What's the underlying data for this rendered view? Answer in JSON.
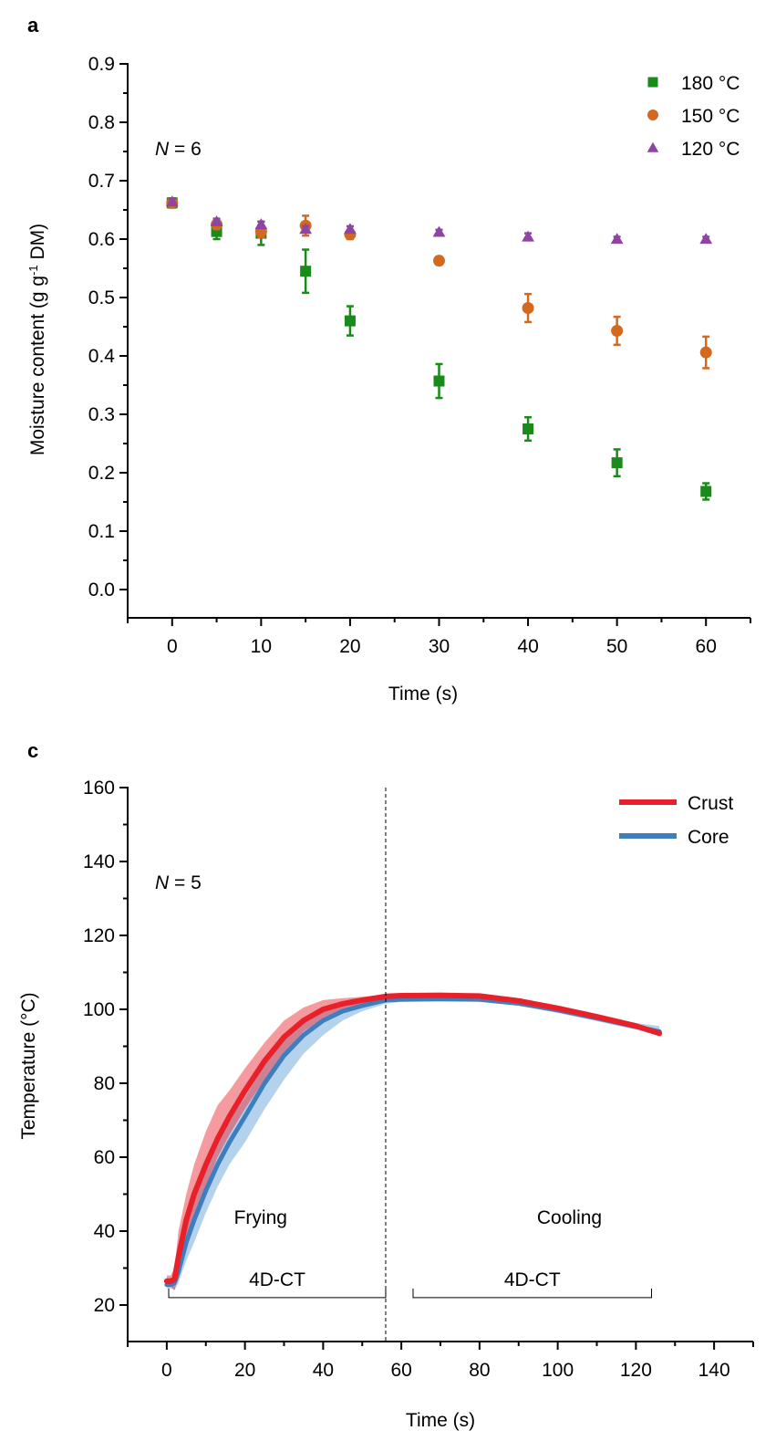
{
  "chart_data": [
    {
      "panel": "a",
      "type": "scatter",
      "title": "",
      "xlabel": "Time (s)",
      "ylabel": "Moisture content (g g⁻¹ DM)",
      "ylabel_parts": {
        "pre": "Moisture content (g g",
        "sup": "-1",
        "post": " DM)"
      },
      "xlim": [
        -5,
        65
      ],
      "ylim": [
        -0.05,
        0.9
      ],
      "xticks": [
        0,
        10,
        20,
        30,
        40,
        50,
        60
      ],
      "xtick_labels": [
        "0",
        "10",
        "20",
        "30",
        "40",
        "50",
        "60"
      ],
      "yticks": [
        0.0,
        0.1,
        0.2,
        0.3,
        0.4,
        0.5,
        0.6,
        0.7,
        0.8,
        0.9
      ],
      "ytick_labels": [
        "0.0",
        "0.1",
        "0.2",
        "0.3",
        "0.4",
        "0.5",
        "0.6",
        "0.7",
        "0.8",
        "0.9"
      ],
      "grid": false,
      "legend_position": "top-right",
      "annotation": {
        "italic": "N",
        "rest": " = 6"
      },
      "x": [
        0,
        5,
        10,
        15,
        20,
        30,
        40,
        50,
        60
      ],
      "series": [
        {
          "name": "180 °C",
          "marker": "square",
          "color": "#1a8a1a",
          "values": [
            0.662,
            0.613,
            0.61,
            0.545,
            0.46,
            0.357,
            0.275,
            0.217,
            0.168
          ],
          "errors": [
            0.008,
            0.013,
            0.02,
            0.037,
            0.025,
            0.029,
            0.02,
            0.023,
            0.014
          ]
        },
        {
          "name": "150 °C",
          "marker": "circle",
          "color": "#d2691e",
          "values": [
            0.662,
            0.625,
            0.613,
            0.623,
            0.608,
            0.563,
            0.482,
            0.443,
            0.406
          ],
          "errors": [
            0.006,
            0.008,
            0.01,
            0.017,
            0.008,
            0.007,
            0.024,
            0.024,
            0.027
          ]
        },
        {
          "name": "120 °C",
          "marker": "triangle",
          "color": "#8e44a0",
          "values": [
            0.664,
            0.63,
            0.625,
            0.617,
            0.617,
            0.612,
            0.604,
            0.6,
            0.6
          ],
          "errors": [
            0.005,
            0.005,
            0.005,
            0.005,
            0.005,
            0.004,
            0.006,
            0.004,
            0.004
          ]
        }
      ]
    },
    {
      "panel": "c",
      "type": "line",
      "title": "",
      "xlabel": "Time (s)",
      "ylabel": "Temperature (°C)",
      "xlim": [
        -10,
        150
      ],
      "ylim": [
        10,
        160
      ],
      "xticks": [
        0,
        20,
        40,
        60,
        80,
        100,
        120,
        140
      ],
      "xtick_labels": [
        "0",
        "20",
        "40",
        "60",
        "80",
        "100",
        "120",
        "140"
      ],
      "yticks": [
        20,
        40,
        60,
        80,
        100,
        120,
        140,
        160
      ],
      "ytick_labels": [
        "20",
        "40",
        "60",
        "80",
        "100",
        "120",
        "140",
        "160"
      ],
      "grid": false,
      "legend_position": "top-right",
      "annotation": {
        "italic": "N",
        "rest": " = 5"
      },
      "divider_x": 56,
      "phases": [
        {
          "label": "Frying",
          "x": 24,
          "y": 42
        },
        {
          "label": "Cooling",
          "x": 103,
          "y": 42
        }
      ],
      "brackets": [
        {
          "label": "4D-CT",
          "x0": 0.5,
          "x1": 56,
          "y": 22
        },
        {
          "label": "4D-CT",
          "x0": 63,
          "x1": 124,
          "y": 22
        }
      ],
      "x": [
        0,
        1,
        2,
        3,
        5,
        7,
        10,
        13,
        16,
        20,
        25,
        30,
        35,
        40,
        45,
        50,
        56,
        60,
        70,
        80,
        90,
        100,
        110,
        120,
        126
      ],
      "series": [
        {
          "name": "Crust",
          "color": "#e8202a",
          "band_color": "#e8202a",
          "values": [
            26.5,
            26.5,
            27,
            33,
            43,
            50,
            58,
            65,
            71,
            78,
            86,
            92.5,
            97,
            100,
            101.5,
            102.5,
            103.5,
            103.7,
            103.8,
            103.6,
            102.3,
            100.3,
            98,
            95.5,
            93.5
          ],
          "lower": [
            25,
            25,
            24,
            28,
            37,
            44,
            52,
            60,
            66,
            73,
            81,
            88,
            94,
            97.5,
            100,
            101.5,
            102.8,
            103,
            103.2,
            103,
            101.8,
            99.8,
            97.4,
            94.8,
            92.8
          ],
          "upper": [
            28,
            28,
            30,
            40,
            50,
            58,
            67,
            74,
            78,
            84,
            91,
            97,
            100.5,
            102.5,
            103,
            103.4,
            104,
            104.2,
            104.3,
            104.2,
            102.8,
            100.8,
            98.6,
            96.2,
            94.2
          ]
        },
        {
          "name": "Core",
          "color": "#3d7ebf",
          "band_color": "#5b9bd5",
          "values": [
            25.5,
            25.5,
            26,
            29,
            37,
            43,
            51,
            58,
            64,
            71,
            80,
            87.5,
            93,
            97,
            99.5,
            101,
            102.5,
            102.7,
            102.8,
            102.7,
            101.6,
            99.8,
            97.6,
            95.3,
            94
          ],
          "lower": [
            24.5,
            24.5,
            24,
            26,
            32,
            37,
            45,
            52,
            58,
            64,
            73,
            81,
            88,
            93,
            97,
            99.5,
            101.5,
            102,
            102.2,
            102,
            101,
            99,
            96.8,
            94.5,
            92.8
          ],
          "upper": [
            27,
            27,
            28,
            33,
            42,
            49,
            57,
            64,
            70,
            76,
            85,
            92,
            96.5,
            99.5,
            101,
            102,
            103.2,
            103.4,
            103.5,
            103.4,
            102.3,
            100.6,
            98.5,
            96.3,
            95.5
          ]
        }
      ]
    }
  ]
}
